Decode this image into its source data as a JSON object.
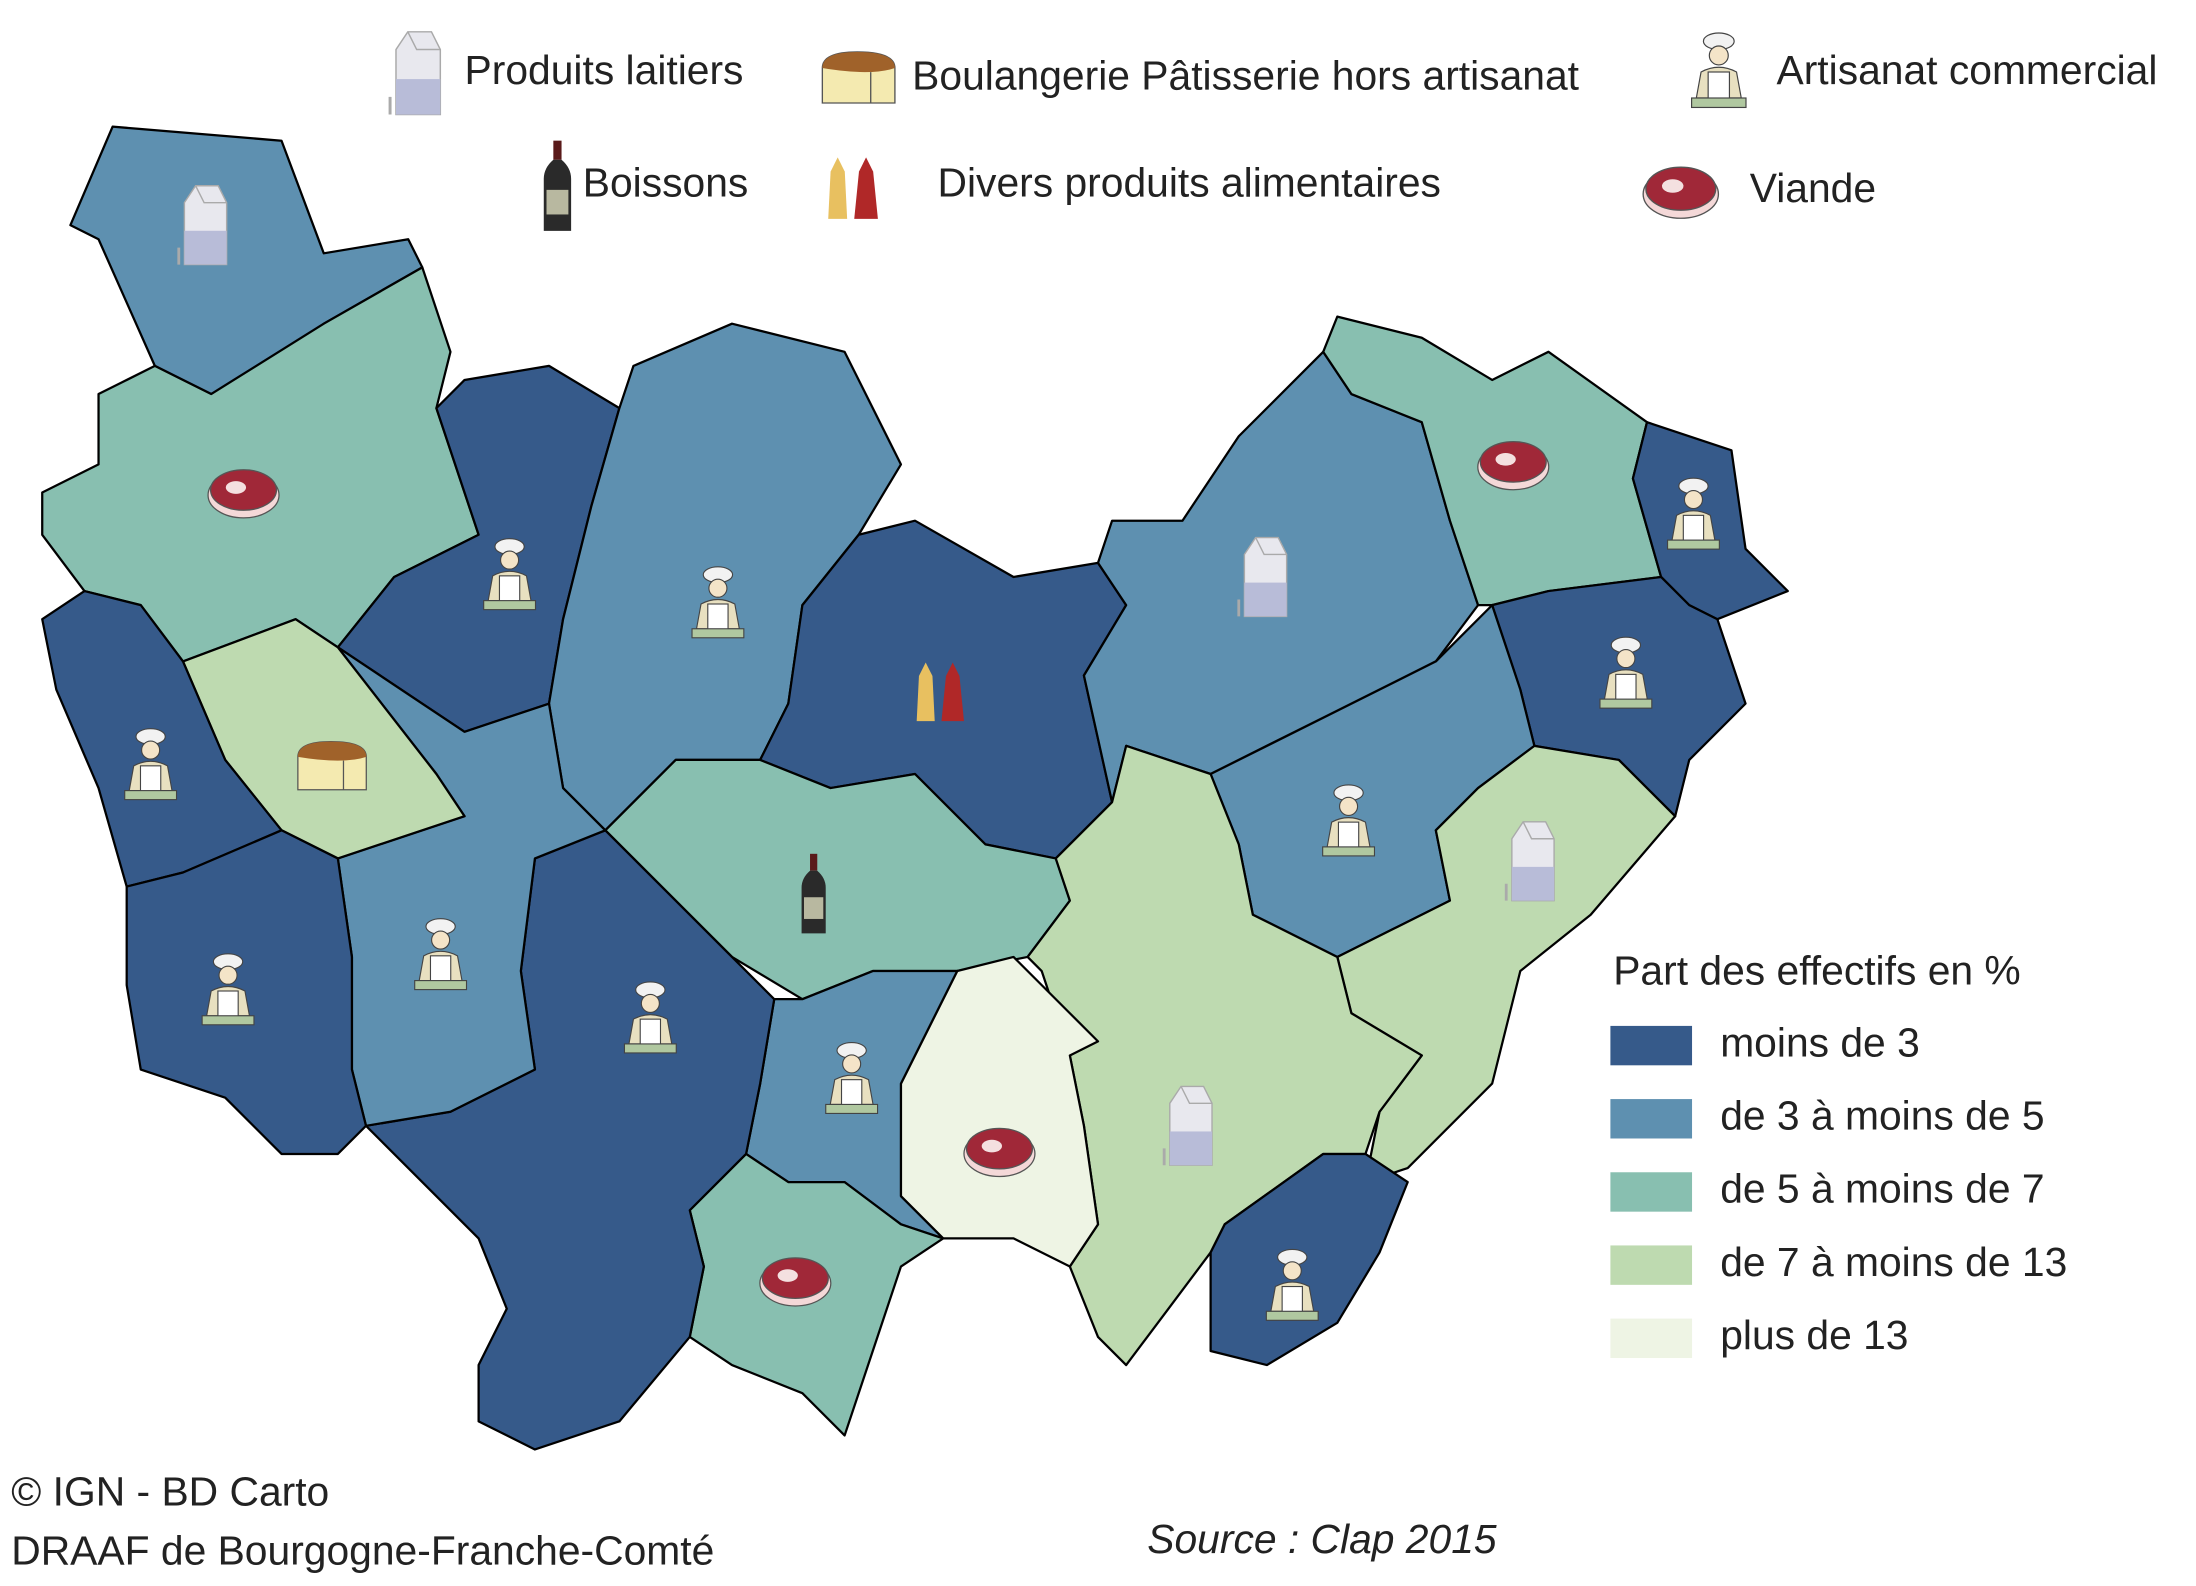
{
  "icon_legend": [
    {
      "label": "Produits laitiers"
    },
    {
      "label": "Boulangerie Pâtisserie hors artisanat"
    },
    {
      "label": "Artisanat commercial"
    },
    {
      "label": "Boissons"
    },
    {
      "label": "Divers produits alimentaires"
    },
    {
      "label": "Viande"
    }
  ],
  "class_legend": {
    "title": "Part des effectifs en %",
    "classes": [
      {
        "label": "moins de 3",
        "color": "#365a8a"
      },
      {
        "label": "de 3 à moins de 5",
        "color": "#5e90b0"
      },
      {
        "label": "de 5 à moins de 7",
        "color": "#88bfb0"
      },
      {
        "label": "de 7 à moins de 13",
        "color": "#bedab0"
      },
      {
        "label": "plus de 13",
        "color": "#eef4e4"
      }
    ]
  },
  "credits": [
    "© IGN - BD Carto",
    "DRAAF de Bourgogne-Franche-Comté"
  ],
  "source": "Source : Clap 2015"
}
